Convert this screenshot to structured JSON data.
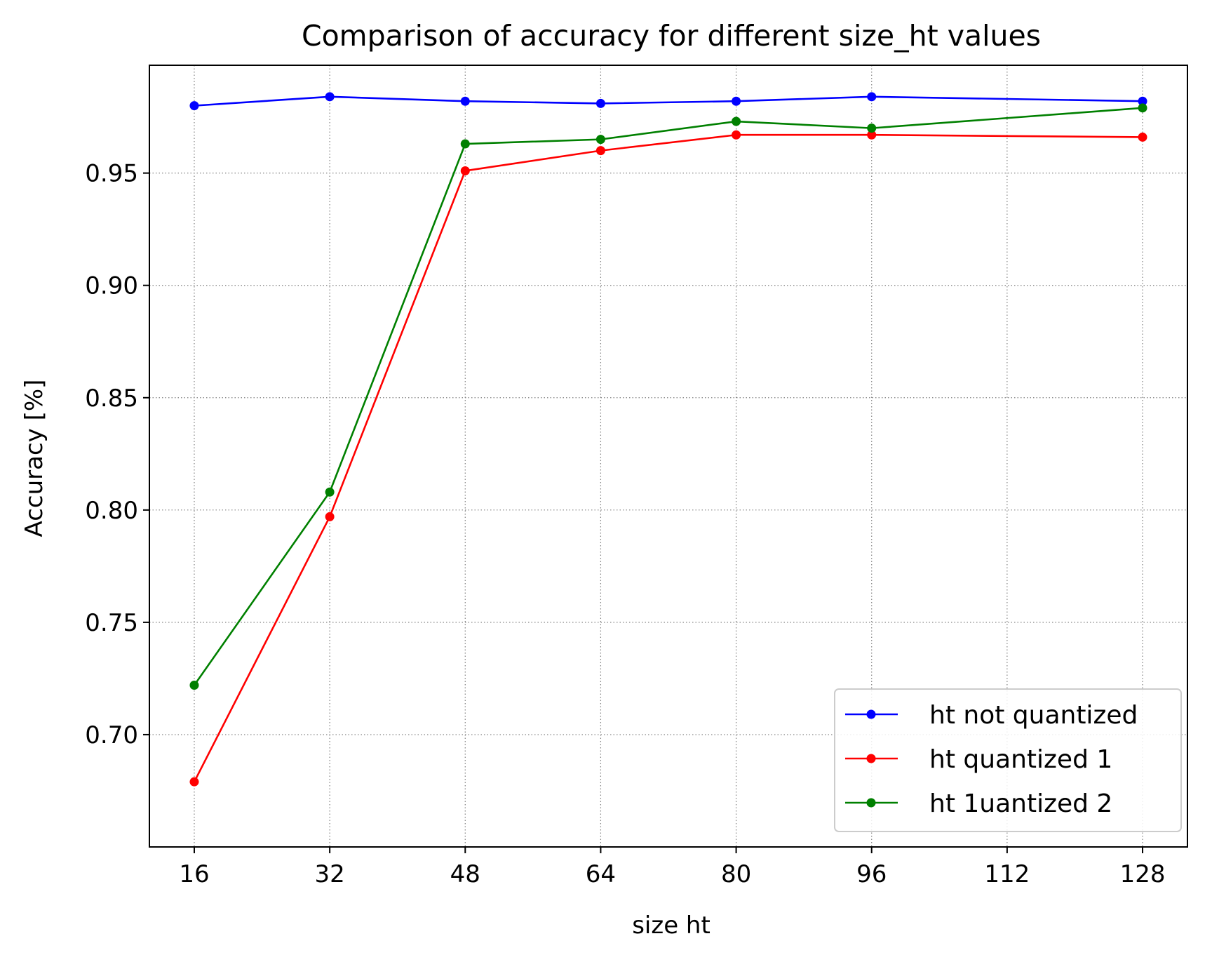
{
  "chart_data": {
    "type": "line",
    "title": "Comparison of accuracy for different size_ht values",
    "xlabel": "size ht",
    "ylabel": "Accuracy [%]",
    "x": [
      16,
      32,
      48,
      64,
      80,
      96,
      128
    ],
    "xticks": [
      16,
      32,
      48,
      64,
      80,
      96,
      112,
      128
    ],
    "xtick_labels": [
      "16",
      "32",
      "48",
      "64",
      "80",
      "96",
      "112",
      "128"
    ],
    "yticks": [
      0.7,
      0.75,
      0.8,
      0.85,
      0.9,
      0.95
    ],
    "ytick_labels": [
      "0.70",
      "0.75",
      "0.80",
      "0.85",
      "0.90",
      "0.95"
    ],
    "xlim": [
      10.7,
      133.3
    ],
    "ylim": [
      0.65,
      0.998
    ],
    "grid": true,
    "grid_style": "dotted",
    "legend_position": "lower-right",
    "series": [
      {
        "name": "ht not quantized",
        "color": "#0000ff",
        "values": [
          0.98,
          0.984,
          0.982,
          0.981,
          0.982,
          0.984,
          0.982
        ]
      },
      {
        "name": "ht quantized 1",
        "color": "#ff0000",
        "values": [
          0.679,
          0.797,
          0.951,
          0.96,
          0.967,
          0.967,
          0.966
        ]
      },
      {
        "name": "ht 1uantized 2",
        "color": "#008000",
        "values": [
          0.722,
          0.808,
          0.963,
          0.965,
          0.973,
          0.97,
          0.979
        ]
      }
    ]
  }
}
